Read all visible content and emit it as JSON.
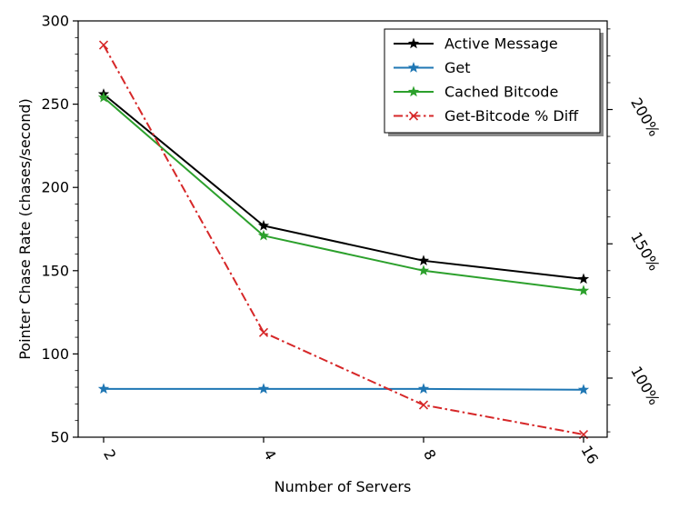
{
  "chart_data": {
    "type": "line",
    "xlabel": "Number of Servers",
    "ylabel": "Pointer Chase Rate (chases/second)",
    "categories": [
      "2",
      "4",
      "8",
      "16"
    ],
    "ylim": [
      50,
      300
    ],
    "yticks": [
      50,
      100,
      150,
      200,
      250,
      300
    ],
    "y2lim": [
      78,
      233
    ],
    "y2ticks": [
      100,
      150,
      200
    ],
    "y2ticklabels": [
      "100%",
      "150%",
      "200%"
    ],
    "grid": false,
    "legend_position": "top-right",
    "series": [
      {
        "name": "Active Message",
        "axis": "left",
        "values": [
          256,
          177,
          156,
          145
        ],
        "color": "#000000",
        "dash": "solid",
        "marker": "star"
      },
      {
        "name": "Get",
        "axis": "left",
        "values": [
          79,
          79,
          79,
          78.5
        ],
        "color": "#1f77b4",
        "dash": "solid",
        "marker": "star"
      },
      {
        "name": "Cached Bitcode",
        "axis": "left",
        "values": [
          254,
          171,
          150,
          138
        ],
        "color": "#2ca02c",
        "dash": "solid",
        "marker": "star"
      },
      {
        "name": "Get-Bitcode % Diff",
        "axis": "right",
        "values": [
          224,
          117,
          90,
          79
        ],
        "color": "#d62728",
        "dash": "dashdot",
        "marker": "x"
      }
    ]
  }
}
